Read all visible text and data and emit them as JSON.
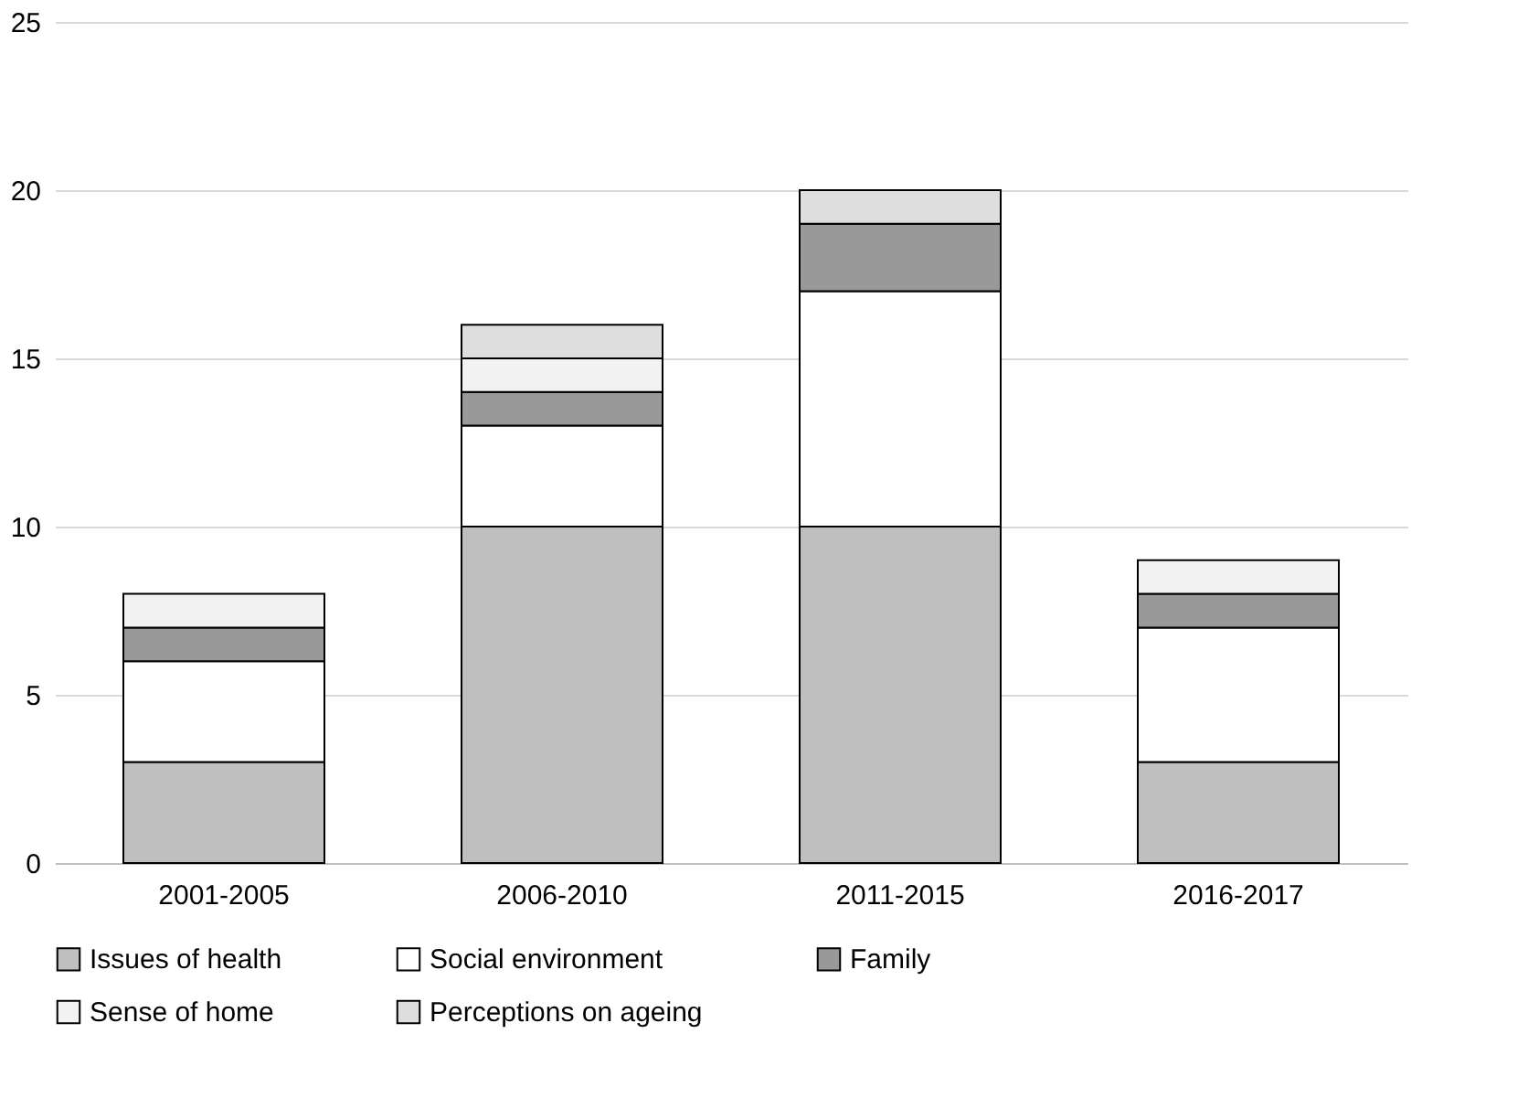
{
  "chart_data": {
    "type": "bar",
    "stacked": true,
    "categories": [
      "2001-2005",
      "2006-2010",
      "2011-2015",
      "2016-2017"
    ],
    "series": [
      {
        "name": "Issues of health",
        "color": "#bfbfbf",
        "values": [
          3,
          10,
          10,
          3
        ]
      },
      {
        "name": "Social environment",
        "color": "#ffffff",
        "values": [
          3,
          3,
          7,
          4
        ]
      },
      {
        "name": "Family",
        "color": "#999999",
        "values": [
          1,
          1,
          2,
          1
        ]
      },
      {
        "name": "Sense of home",
        "color": "#f2f2f2",
        "values": [
          1,
          1,
          0,
          1
        ]
      },
      {
        "name": "Perceptions on ageing",
        "color": "#dedede",
        "values": [
          0,
          1,
          1,
          0
        ]
      }
    ],
    "ylim": [
      0,
      25
    ],
    "yticks": [
      0,
      5,
      10,
      15,
      20,
      25
    ],
    "grid": "y",
    "legend": "bottom"
  }
}
